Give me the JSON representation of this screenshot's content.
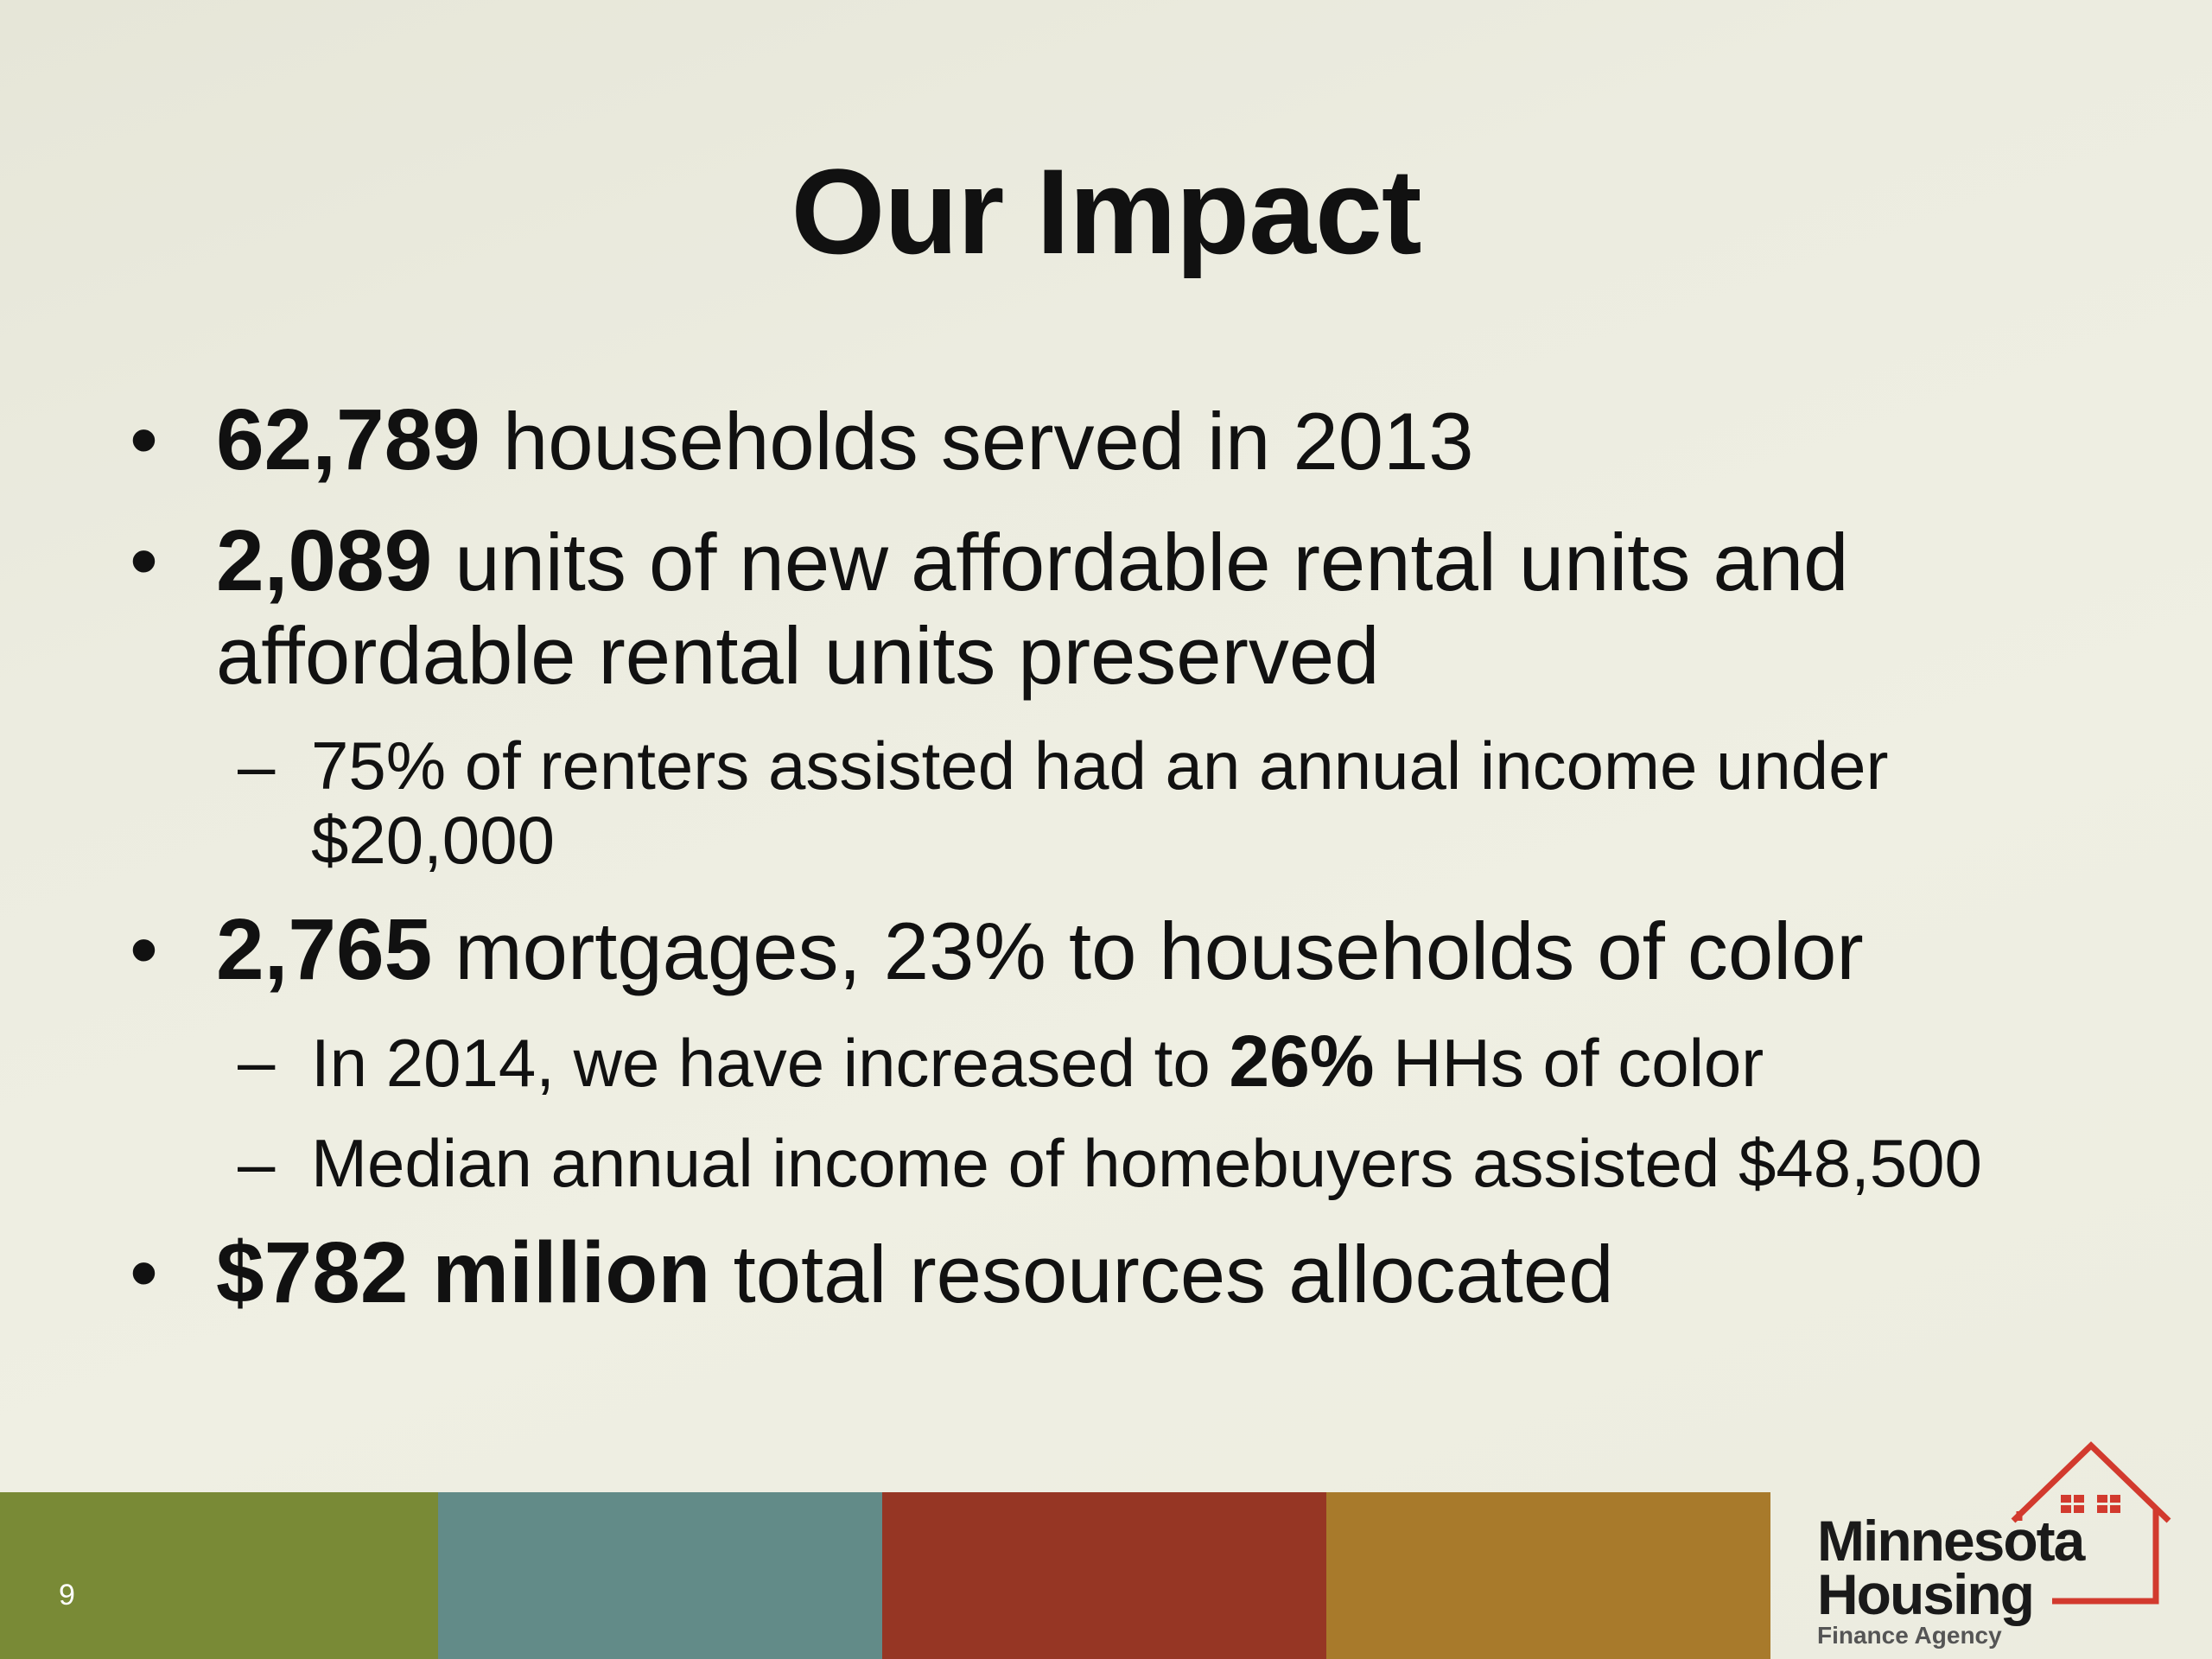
{
  "slide": {
    "title": "Our Impact",
    "page_number": "9",
    "bullet_marker": "•",
    "sub_marker": "–"
  },
  "bullets": [
    {
      "bold": "62,789",
      "text": " households served in 2013",
      "subs": []
    },
    {
      "bold": "2,089",
      "text": " units of new affordable rental units and affordable rental units preserved",
      "subs": [
        {
          "pre": "75% of renters assisted had an annual income under $20,000",
          "bold": "",
          "post": ""
        }
      ]
    },
    {
      "bold": "2,765",
      "text": " mortgages, 23% to households of color",
      "subs": [
        {
          "pre": "In 2014, we have increased to ",
          "bold": "26%",
          "post": " HHs of color"
        },
        {
          "pre": "Median annual income of homebuyers assisted $48,500",
          "bold": "",
          "post": ""
        }
      ]
    },
    {
      "bold": "$782 million",
      "text": " total resources allocated",
      "subs": []
    }
  ],
  "footer": {
    "colors": [
      "#798a36",
      "#628b88",
      "#963624",
      "#a87a2b"
    ]
  },
  "logo": {
    "line1": "Minnesota",
    "line2": "Housing",
    "line3": "Finance Agency",
    "accent_color": "#d23a2e"
  }
}
